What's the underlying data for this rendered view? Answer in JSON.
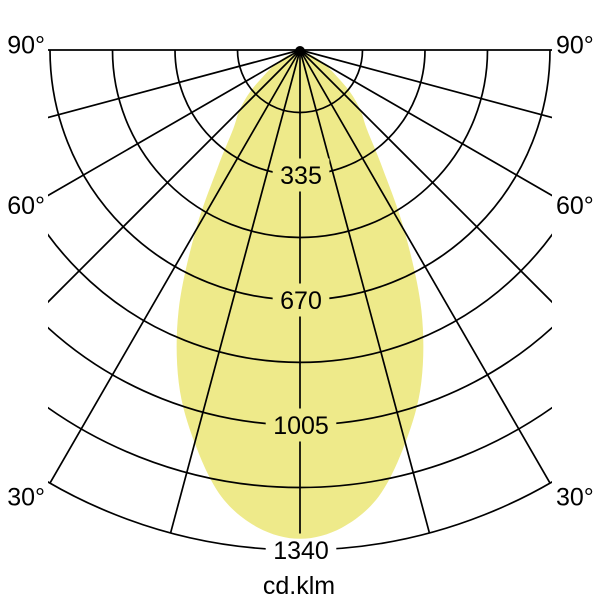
{
  "colors": {
    "background": "#ffffff",
    "grid_line": "#000000",
    "text": "#000000",
    "beam_fill": "#eeea8a"
  },
  "chart_data": {
    "type": "polar",
    "subtype": "luminous-intensity-distribution",
    "unit_label": "cd.klm",
    "angle_axis": {
      "range_deg": [
        -90,
        90
      ],
      "grid_step_deg": 15,
      "labeled_ticks": [
        {
          "angle_deg": 90,
          "label": "90°"
        },
        {
          "angle_deg": 60,
          "label": "60°"
        },
        {
          "angle_deg": 30,
          "label": "30°"
        }
      ],
      "label_sides": [
        "left",
        "right"
      ]
    },
    "radial_axis": {
      "min": 0,
      "max": 1340,
      "grid_step": 167.5,
      "labeled_ticks": [
        {
          "value": 335,
          "label": "335"
        },
        {
          "value": 670,
          "label": "670"
        },
        {
          "value": 1005,
          "label": "1005"
        },
        {
          "value": 1340,
          "label": "1340"
        }
      ]
    },
    "series": [
      {
        "name": "luminous-intensity-beam",
        "symmetric": true,
        "points": [
          {
            "angle_deg": 0,
            "value": 1310
          },
          {
            "angle_deg": 5,
            "value": 1285
          },
          {
            "angle_deg": 10,
            "value": 1215
          },
          {
            "angle_deg": 15,
            "value": 1090
          },
          {
            "angle_deg": 20,
            "value": 950
          },
          {
            "angle_deg": 25,
            "value": 770
          },
          {
            "angle_deg": 30,
            "value": 560
          },
          {
            "angle_deg": 35,
            "value": 385
          },
          {
            "angle_deg": 40,
            "value": 280
          },
          {
            "angle_deg": 45,
            "value": 230
          },
          {
            "angle_deg": 50,
            "value": 175
          },
          {
            "angle_deg": 55,
            "value": 115
          },
          {
            "angle_deg": 60,
            "value": 75
          },
          {
            "angle_deg": 65,
            "value": 40
          },
          {
            "angle_deg": 70,
            "value": 0
          }
        ]
      }
    ]
  }
}
